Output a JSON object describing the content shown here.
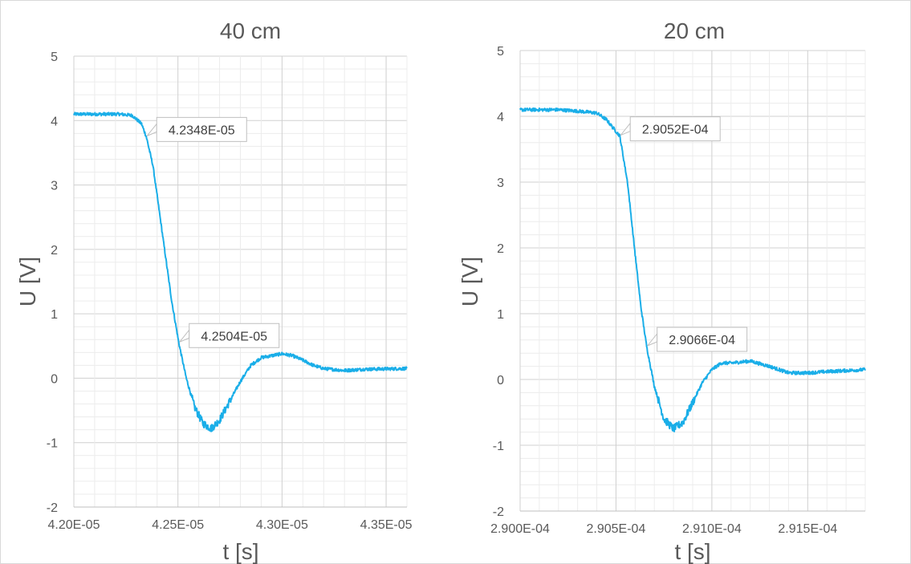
{
  "chart_data": [
    {
      "type": "line",
      "title": "40 cm",
      "xlabel": "t [s]",
      "ylabel": "U [V]",
      "xlim": [
        4.2e-05,
        4.36e-05
      ],
      "ylim": [
        -2,
        5
      ],
      "xticks": [
        4.2e-05,
        4.25e-05,
        4.3e-05,
        4.35e-05
      ],
      "xtick_labels": [
        "4.20E-05",
        "4.25E-05",
        "4.30E-05",
        "4.35E-05"
      ],
      "yticks": [
        -2,
        -1,
        0,
        1,
        2,
        3,
        4,
        5
      ],
      "ytick_labels": [
        "-2",
        "-1",
        "0",
        "1",
        "2",
        "3",
        "4",
        "5"
      ],
      "grid": true,
      "color": "#1aaee8",
      "series": [
        {
          "x": [
            4.2e-05,
            4.212e-05,
            4.222e-05,
            4.228e-05,
            4.2325e-05,
            4.2348e-05,
            4.238e-05,
            4.241e-05,
            4.244e-05,
            4.247e-05,
            4.2504e-05,
            4.254e-05,
            4.258e-05,
            4.262e-05,
            4.266e-05,
            4.27e-05,
            4.275e-05,
            4.28e-05,
            4.285e-05,
            4.29e-05,
            4.295e-05,
            4.3e-05,
            4.305e-05,
            4.31e-05,
            4.315e-05,
            4.32e-05,
            4.33e-05,
            4.34e-05,
            4.36e-05
          ],
          "y": [
            4.1,
            4.1,
            4.1,
            4.08,
            3.95,
            3.75,
            3.3,
            2.6,
            1.9,
            1.2,
            0.55,
            0.0,
            -0.45,
            -0.7,
            -0.78,
            -0.65,
            -0.35,
            -0.05,
            0.2,
            0.32,
            0.35,
            0.38,
            0.35,
            0.28,
            0.2,
            0.15,
            0.12,
            0.14,
            0.15
          ]
        }
      ],
      "annotations": [
        {
          "text": "4.2348E-05",
          "x": 4.2348e-05,
          "y": 3.75
        },
        {
          "text": "4.2504E-05",
          "x": 4.2504e-05,
          "y": 0.55
        }
      ]
    },
    {
      "type": "line",
      "title": "20 cm",
      "xlabel": "t [s]",
      "ylabel": "U [V]",
      "xlim": [
        0.00029,
        0.0002918
      ],
      "ylim": [
        -2,
        5
      ],
      "xticks": [
        0.00029,
        0.0002905,
        0.000291,
        0.0002915
      ],
      "xtick_labels": [
        "2.900E-04",
        "2.905E-04",
        "2.910E-04",
        "2.915E-04"
      ],
      "yticks": [
        -2,
        -1,
        0,
        1,
        2,
        3,
        4,
        5
      ],
      "ytick_labels": [
        "-2",
        "-1",
        "0",
        "1",
        "2",
        "3",
        "4",
        "5"
      ],
      "grid": true,
      "color": "#1aaee8",
      "series": [
        {
          "x": [
            0.00029,
            0.0002901,
            0.0002902,
            0.0002903,
            0.0002904,
            0.00029045,
            0.00029052,
            0.00029056,
            0.0002906,
            0.00029063,
            0.00029066,
            0.0002907,
            0.00029075,
            0.0002908,
            0.00029085,
            0.0002909,
            0.00029095,
            0.000291,
            0.00029105,
            0.0002911,
            0.0002912,
            0.0002913,
            0.0002914,
            0.0002915,
            0.0002916,
            0.0002918
          ],
          "y": [
            4.1,
            4.1,
            4.1,
            4.08,
            4.05,
            3.95,
            3.7,
            3.0,
            1.9,
            1.1,
            0.5,
            -0.1,
            -0.6,
            -0.75,
            -0.65,
            -0.35,
            -0.05,
            0.15,
            0.25,
            0.25,
            0.28,
            0.2,
            0.1,
            0.1,
            0.12,
            0.15
          ]
        }
      ],
      "annotations": [
        {
          "text": "2.9052E-04",
          "x": 0.00029052,
          "y": 3.7
        },
        {
          "text": "2.9066E-04",
          "x": 0.00029066,
          "y": 0.5
        }
      ]
    }
  ]
}
